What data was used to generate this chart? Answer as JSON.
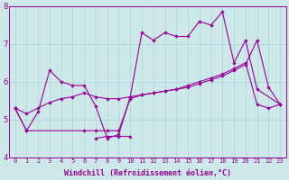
{
  "title": "",
  "xlabel": "Windchill (Refroidissement éolien,°C)",
  "xlim": [
    -0.5,
    23.5
  ],
  "ylim": [
    4,
    8
  ],
  "xticks": [
    0,
    1,
    2,
    3,
    4,
    5,
    6,
    7,
    8,
    9,
    10,
    11,
    12,
    13,
    14,
    15,
    16,
    17,
    18,
    19,
    20,
    21,
    22,
    23
  ],
  "yticks": [
    4,
    5,
    6,
    7,
    8
  ],
  "bg_color": "#cce8e8",
  "line_color": "#990099",
  "grid_color": "#aad4d4",
  "line1_x": [
    0,
    1,
    2,
    3,
    4,
    5,
    6,
    7,
    8,
    9,
    10,
    11,
    12,
    13,
    14,
    15,
    16,
    17,
    18,
    19,
    20,
    21,
    23
  ],
  "line1_y": [
    5.3,
    4.7,
    5.2,
    6.3,
    6.0,
    5.9,
    5.9,
    5.35,
    4.5,
    4.6,
    5.6,
    7.3,
    7.1,
    7.3,
    7.2,
    7.2,
    7.6,
    7.5,
    7.85,
    6.5,
    7.1,
    5.8,
    5.4
  ],
  "line2_x": [
    0,
    1,
    2,
    3,
    4,
    5,
    6,
    7,
    8,
    9,
    10,
    11,
    12,
    13,
    14,
    15,
    16,
    17,
    18,
    19,
    20,
    21,
    22,
    23
  ],
  "line2_y": [
    5.3,
    5.15,
    5.3,
    5.45,
    5.55,
    5.6,
    5.7,
    5.6,
    5.55,
    5.55,
    5.6,
    5.65,
    5.7,
    5.75,
    5.8,
    5.9,
    6.0,
    6.1,
    6.2,
    6.35,
    6.5,
    5.4,
    5.3,
    5.4
  ],
  "line3_x": [
    0,
    1,
    6,
    7,
    8,
    9,
    10,
    11,
    12,
    13,
    14,
    15,
    16,
    17,
    18,
    19,
    20,
    21,
    22,
    23
  ],
  "line3_y": [
    5.3,
    4.7,
    4.7,
    4.7,
    4.7,
    4.7,
    5.55,
    5.65,
    5.7,
    5.75,
    5.8,
    5.85,
    5.95,
    6.05,
    6.15,
    6.3,
    6.45,
    7.1,
    5.85,
    5.4
  ],
  "line4_x": [
    7,
    8,
    9,
    10
  ],
  "line4_y": [
    4.5,
    4.55,
    4.55,
    4.55
  ]
}
